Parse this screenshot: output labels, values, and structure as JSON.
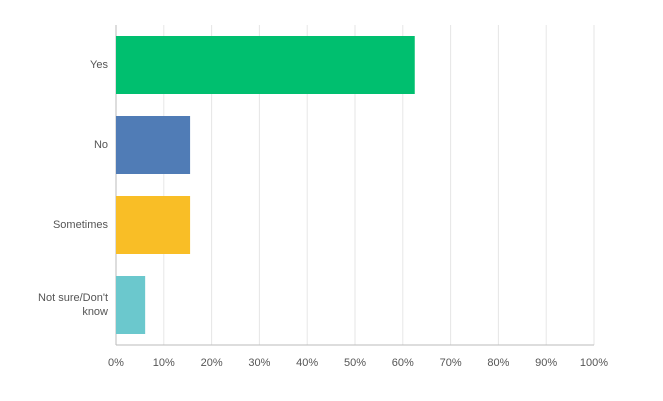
{
  "chart_data": {
    "type": "bar",
    "orientation": "horizontal",
    "categories": [
      "Yes",
      "No",
      "Sometimes",
      "Not sure/Don't know"
    ],
    "values": [
      62.5,
      15.5,
      15.5,
      6.1
    ],
    "colors": [
      "#00bf6f",
      "#507cb6",
      "#f9be26",
      "#6bc8cd"
    ],
    "xlim": [
      0,
      100
    ],
    "xticks": [
      {
        "value": 0,
        "label": "0%"
      },
      {
        "value": 10,
        "label": "10%"
      },
      {
        "value": 20,
        "label": "20%"
      },
      {
        "value": 30,
        "label": "30%"
      },
      {
        "value": 40,
        "label": "40%"
      },
      {
        "value": 50,
        "label": "50%"
      },
      {
        "value": 60,
        "label": "60%"
      },
      {
        "value": 70,
        "label": "70%"
      },
      {
        "value": 80,
        "label": "80%"
      },
      {
        "value": 90,
        "label": "90%"
      },
      {
        "value": 100,
        "label": "100%"
      }
    ],
    "grid": true
  }
}
